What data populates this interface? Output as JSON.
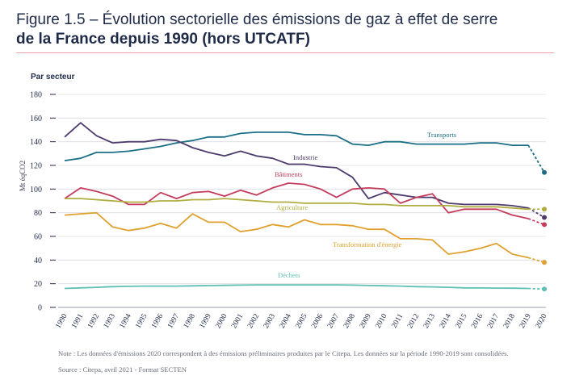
{
  "header": {
    "title_line1": "Figure 1.5 – Évolution sectorielle des émissions de gaz à effet de serre",
    "title_line2": "de la France depuis 1990 (hors UTCATF)"
  },
  "footer": {
    "note": "Note : Les données d'émissions 2020 correspondent à des émissions préliminaires produites par le Citepa. Les données sur la période 1990-2019 sont consolidées.",
    "source": "Source : Citepa, avril 2021 - Format SECTEN"
  },
  "chart_data": {
    "type": "line",
    "subtitle": "Par secteur",
    "ylabel": "Mt éqCO2",
    "xlabel": "",
    "ylim": [
      0,
      180
    ],
    "yticks": [
      0,
      20,
      40,
      60,
      80,
      100,
      120,
      140,
      160,
      180
    ],
    "x": [
      "1990",
      "1991",
      "1992",
      "1993",
      "1994",
      "1995",
      "1996",
      "1997",
      "1998",
      "1999",
      "2000",
      "2001",
      "2002",
      "2003",
      "2004",
      "2005",
      "2006",
      "2007",
      "2008",
      "2009",
      "2010",
      "2011",
      "2012",
      "2013",
      "2014",
      "2015",
      "2016",
      "2017",
      "2018",
      "2019",
      "2020"
    ],
    "note_dashed": "2019-2020 segment dashed (preliminary 2020 data)",
    "series": [
      {
        "name": "Transports",
        "color": "#1a6e86",
        "values": [
          124,
          126,
          131,
          131,
          132,
          134,
          136,
          139,
          141,
          144,
          144,
          147,
          148,
          148,
          148,
          146,
          146,
          145,
          138,
          137,
          140,
          140,
          138,
          138,
          138,
          138,
          139,
          139,
          137,
          137,
          114
        ]
      },
      {
        "name": "Industrie",
        "color": "#4e3b6e",
        "values": [
          144,
          156,
          145,
          139,
          140,
          140,
          142,
          141,
          135,
          131,
          128,
          132,
          128,
          126,
          121,
          121,
          119,
          118,
          110,
          92,
          97,
          95,
          93,
          93,
          88,
          87,
          87,
          87,
          86,
          84,
          76
        ]
      },
      {
        "name": "Bâtiments",
        "color": "#c43c5c",
        "values": [
          92,
          101,
          98,
          94,
          87,
          87,
          97,
          92,
          97,
          98,
          94,
          99,
          95,
          101,
          105,
          104,
          100,
          93,
          100,
          101,
          100,
          88,
          93,
          96,
          80,
          83,
          83,
          83,
          78,
          75,
          70
        ]
      },
      {
        "name": "Agriculture",
        "color": "#b0ad3e",
        "values": [
          92,
          92,
          91,
          90,
          89,
          89,
          90,
          90,
          91,
          91,
          92,
          91,
          90,
          89,
          89,
          88,
          88,
          88,
          88,
          87,
          87,
          86,
          86,
          86,
          86,
          85,
          85,
          85,
          84,
          83,
          83
        ]
      },
      {
        "name": "Transformation d'énergie",
        "color": "#e0a12e",
        "values": [
          78,
          79,
          80,
          68,
          65,
          67,
          71,
          67,
          79,
          72,
          72,
          64,
          66,
          70,
          68,
          74,
          70,
          70,
          69,
          66,
          66,
          58,
          58,
          57,
          45,
          47,
          50,
          54,
          45,
          42,
          38
        ]
      },
      {
        "name": "Déchets",
        "color": "#5fbfb4",
        "values": [
          16,
          16.5,
          17,
          17.5,
          17.8,
          18,
          18,
          18,
          18.2,
          18.4,
          18.6,
          18.8,
          19,
          19,
          19,
          19,
          19,
          19,
          18.8,
          18.5,
          18.3,
          18,
          17.5,
          17.3,
          17,
          16.5,
          16.4,
          16.3,
          16.2,
          16,
          15.5
        ]
      }
    ]
  }
}
